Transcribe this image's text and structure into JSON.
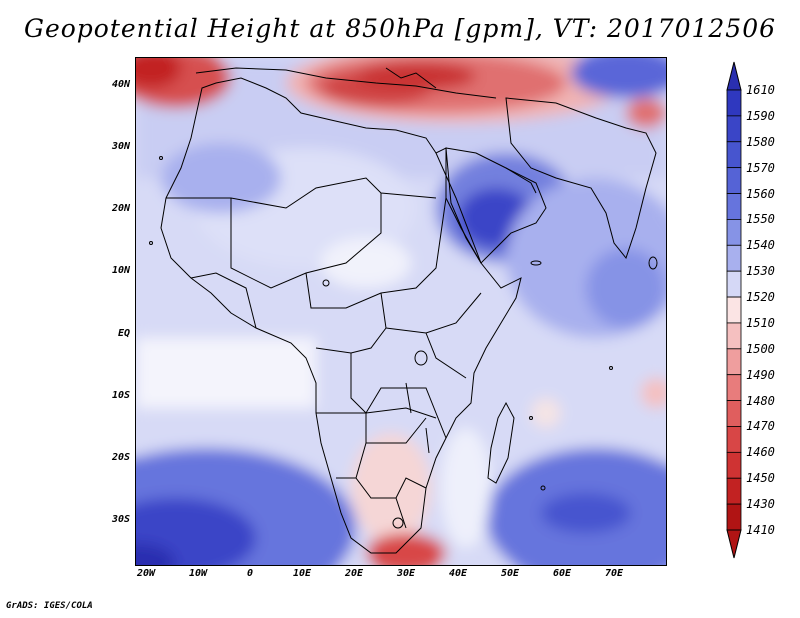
{
  "title": "Geopotential Height at 850hPa [gpm], VT: 2017012506",
  "credit": "GrADS: IGES/COLA",
  "axes": {
    "lat_labels": [
      "40N",
      "30N",
      "20N",
      "10N",
      "EQ",
      "10S",
      "20S",
      "30S"
    ],
    "lon_labels": [
      "20W",
      "10W",
      "0",
      "10E",
      "20E",
      "30E",
      "40E",
      "50E",
      "60E",
      "70E"
    ]
  },
  "legend": {
    "levels": [
      "1610",
      "1590",
      "1580",
      "1570",
      "1560",
      "1550",
      "1540",
      "1530",
      "1520",
      "1510",
      "1500",
      "1490",
      "1480",
      "1470",
      "1460",
      "1450",
      "1430",
      "1410"
    ],
    "colors": [
      "#2a2fb0",
      "#2f38bf",
      "#3a45c7",
      "#4755cf",
      "#5563d6",
      "#6674dd",
      "#8693e6",
      "#a8b0ee",
      "#d5d8f6",
      "#fbe4e4",
      "#f5c0c0",
      "#ef9e9e",
      "#e87c7c",
      "#e05e5e",
      "#d84646",
      "#cf3333",
      "#c22222",
      "#b01414"
    ]
  },
  "map": {
    "region": "Africa, Arabia and Indian Ocean",
    "bounds": {
      "lon_min": -20,
      "lon_max": 80,
      "lat_min": -37,
      "lat_max": 44
    }
  }
}
